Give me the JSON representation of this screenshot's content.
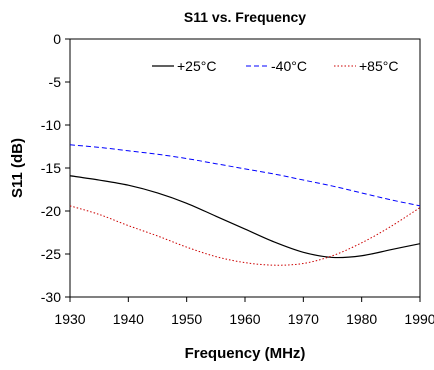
{
  "chart_data": {
    "type": "line",
    "title": "S11 vs. Frequency",
    "xlabel": "Frequency (MHz)",
    "ylabel": "S11 (dB)",
    "xlim": [
      1930,
      1990
    ],
    "ylim": [
      -30,
      0
    ],
    "xticks": [
      "1930",
      "1940",
      "1950",
      "1960",
      "1970",
      "1980",
      "1990"
    ],
    "yticks": [
      "0",
      "-5",
      "-10",
      "-15",
      "-20",
      "-25",
      "-30"
    ],
    "grid": false,
    "legend_position": "top-right",
    "series": [
      {
        "name": "+25°C",
        "color": "#000000",
        "style": "solid",
        "x": [
          1930,
          1935,
          1940,
          1945,
          1950,
          1955,
          1960,
          1965,
          1970,
          1975,
          1980,
          1985,
          1990
        ],
        "y": [
          -15.9,
          -16.4,
          -17.0,
          -17.9,
          -19.1,
          -20.6,
          -22.1,
          -23.6,
          -24.8,
          -25.4,
          -25.2,
          -24.5,
          -23.8
        ]
      },
      {
        "name": "-40°C",
        "color": "#0000ff",
        "style": "dashed",
        "x": [
          1930,
          1935,
          1940,
          1945,
          1950,
          1955,
          1960,
          1965,
          1970,
          1975,
          1980,
          1985,
          1990
        ],
        "y": [
          -12.3,
          -12.6,
          -13.0,
          -13.4,
          -13.9,
          -14.5,
          -15.1,
          -15.7,
          -16.4,
          -17.1,
          -17.9,
          -18.7,
          -19.4
        ]
      },
      {
        "name": "+85°C",
        "color": "#cc0000",
        "style": "dotted",
        "x": [
          1930,
          1935,
          1940,
          1945,
          1950,
          1955,
          1960,
          1965,
          1970,
          1975,
          1980,
          1985,
          1990
        ],
        "y": [
          -19.4,
          -20.4,
          -21.7,
          -22.9,
          -24.2,
          -25.3,
          -26.0,
          -26.3,
          -26.1,
          -25.2,
          -23.7,
          -21.8,
          -19.6
        ]
      }
    ]
  }
}
